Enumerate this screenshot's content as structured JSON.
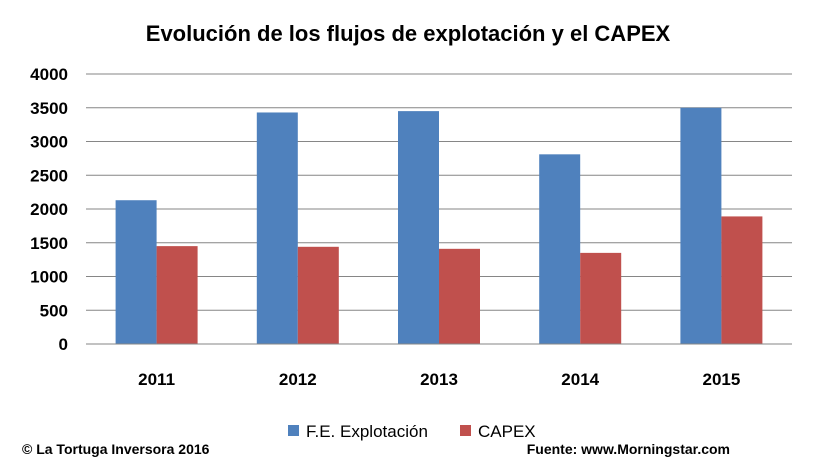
{
  "chart_data": {
    "type": "bar",
    "title": "Evolución de los flujos de explotación y el CAPEX",
    "categories": [
      "2011",
      "2012",
      "2013",
      "2014",
      "2015"
    ],
    "series": [
      {
        "name": "F.E. Explotación",
        "values": [
          2130,
          3430,
          3450,
          2810,
          3500
        ],
        "color": "#4f81bd"
      },
      {
        "name": "CAPEX",
        "values": [
          1450,
          1440,
          1410,
          1350,
          1890
        ],
        "color": "#c0504d"
      }
    ],
    "yticks": [
      "0",
      "500",
      "1000",
      "1500",
      "2000",
      "2500",
      "3000",
      "3500",
      "4000"
    ],
    "ylim": [
      0,
      4000
    ],
    "grid": true,
    "legend_position": "bottom"
  },
  "footer": {
    "copyright": "© La Tortuga Inversora 2016",
    "source": "Fuente: www.Morningstar.com"
  }
}
